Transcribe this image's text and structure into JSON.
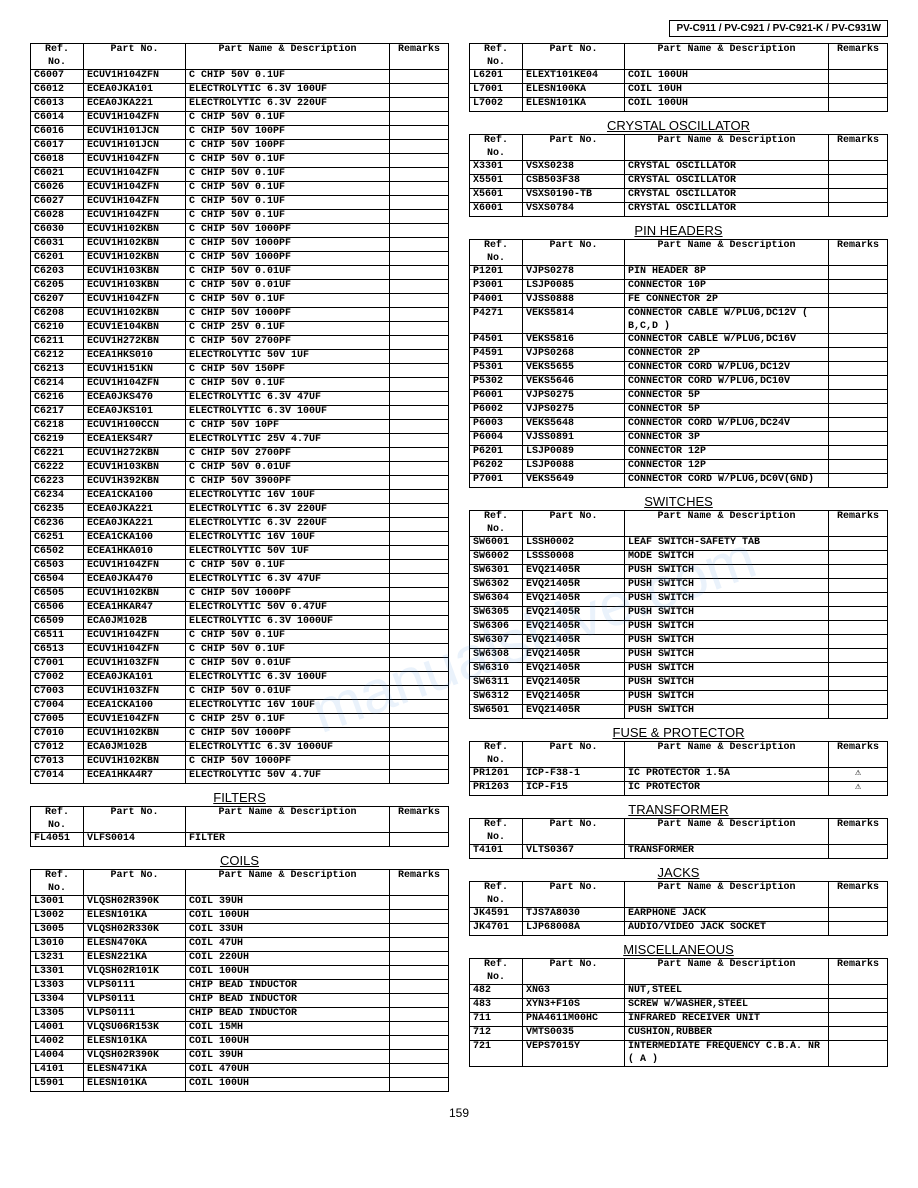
{
  "header_models": "PV-C911 / PV-C921 / PV-C921-K / PV-C931W",
  "page_number": "159",
  "watermark_text": "manualshive.com",
  "headers": {
    "ref": "Ref. No.",
    "part": "Part No.",
    "desc": "Part Name & Description",
    "remarks": "Remarks"
  },
  "sections": {
    "main_left": {
      "rows": [
        [
          "C6007",
          "ECUV1H104ZFN",
          "C CHIP 50V 0.1UF",
          ""
        ],
        [
          "C6012",
          "ECEA0JKA101",
          "ELECTROLYTIC 6.3V 100UF",
          ""
        ],
        [
          "C6013",
          "ECEA0JKA221",
          "ELECTROLYTIC 6.3V 220UF",
          ""
        ],
        [
          "C6014",
          "ECUV1H104ZFN",
          "C CHIP 50V 0.1UF",
          ""
        ],
        [
          "C6016",
          "ECUV1H101JCN",
          "C CHIP 50V 100PF",
          ""
        ],
        [
          "C6017",
          "ECUV1H101JCN",
          "C CHIP 50V 100PF",
          ""
        ],
        [
          "C6018",
          "ECUV1H104ZFN",
          "C CHIP 50V 0.1UF",
          ""
        ],
        [
          "C6021",
          "ECUV1H104ZFN",
          "C CHIP 50V 0.1UF",
          ""
        ],
        [
          "C6026",
          "ECUV1H104ZFN",
          "C CHIP 50V 0.1UF",
          ""
        ],
        [
          "C6027",
          "ECUV1H104ZFN",
          "C CHIP 50V 0.1UF",
          ""
        ],
        [
          "C6028",
          "ECUV1H104ZFN",
          "C CHIP 50V 0.1UF",
          ""
        ],
        [
          "C6030",
          "ECUV1H102KBN",
          "C CHIP 50V 1000PF",
          ""
        ],
        [
          "C6031",
          "ECUV1H102KBN",
          "C CHIP 50V 1000PF",
          ""
        ],
        [
          "C6201",
          "ECUV1H102KBN",
          "C CHIP 50V 1000PF",
          ""
        ],
        [
          "C6203",
          "ECUV1H103KBN",
          "C CHIP 50V 0.01UF",
          ""
        ],
        [
          "C6205",
          "ECUV1H103KBN",
          "C CHIP 50V 0.01UF",
          ""
        ],
        [
          "C6207",
          "ECUV1H104ZFN",
          "C CHIP 50V 0.1UF",
          ""
        ],
        [
          "C6208",
          "ECUV1H102KBN",
          "C CHIP 50V 1000PF",
          ""
        ],
        [
          "C6210",
          "ECUV1E104KBN",
          "C CHIP 25V 0.1UF",
          ""
        ],
        [
          "C6211",
          "ECUV1H272KBN",
          "C CHIP 50V 2700PF",
          ""
        ],
        [
          "C6212",
          "ECEA1HKS010",
          "ELECTROLYTIC 50V 1UF",
          ""
        ],
        [
          "C6213",
          "ECUV1H151KN",
          "C CHIP 50V 150PF",
          ""
        ],
        [
          "C6214",
          "ECUV1H104ZFN",
          "C CHIP 50V 0.1UF",
          ""
        ],
        [
          "C6216",
          "ECEA0JKS470",
          "ELECTROLYTIC 6.3V 47UF",
          ""
        ],
        [
          "C6217",
          "ECEA0JKS101",
          "ELECTROLYTIC 6.3V 100UF",
          ""
        ],
        [
          "C6218",
          "ECUV1H100CCN",
          "C CHIP 50V 10PF",
          ""
        ],
        [
          "C6219",
          "ECEA1EKS4R7",
          "ELECTROLYTIC 25V 4.7UF",
          ""
        ],
        [
          "C6221",
          "ECUV1H272KBN",
          "C CHIP 50V 2700PF",
          ""
        ],
        [
          "C6222",
          "ECUV1H103KBN",
          "C CHIP 50V 0.01UF",
          ""
        ],
        [
          "C6223",
          "ECUV1H392KBN",
          "C CHIP 50V 3900PF",
          ""
        ],
        [
          "C6234",
          "ECEA1CKA100",
          "ELECTROLYTIC 16V 10UF",
          ""
        ],
        [
          "C6235",
          "ECEA0JKA221",
          "ELECTROLYTIC 6.3V 220UF",
          ""
        ],
        [
          "C6236",
          "ECEA0JKA221",
          "ELECTROLYTIC 6.3V 220UF",
          ""
        ],
        [
          "C6251",
          "ECEA1CKA100",
          "ELECTROLYTIC 16V 10UF",
          ""
        ],
        [
          "C6502",
          "ECEA1HKA010",
          "ELECTROLYTIC 50V 1UF",
          ""
        ],
        [
          "C6503",
          "ECUV1H104ZFN",
          "C CHIP 50V 0.1UF",
          ""
        ],
        [
          "C6504",
          "ECEA0JKA470",
          "ELECTROLYTIC 6.3V 47UF",
          ""
        ],
        [
          "C6505",
          "ECUV1H102KBN",
          "C CHIP 50V 1000PF",
          ""
        ],
        [
          "C6506",
          "ECEA1HKAR47",
          "ELECTROLYTIC 50V 0.47UF",
          ""
        ],
        [
          "C6509",
          "ECA0JM102B",
          "ELECTROLYTIC 6.3V 1000UF",
          ""
        ],
        [
          "C6511",
          "ECUV1H104ZFN",
          "C CHIP 50V 0.1UF",
          ""
        ],
        [
          "C6513",
          "ECUV1H104ZFN",
          "C CHIP 50V 0.1UF",
          ""
        ],
        [
          "C7001",
          "ECUV1H103ZFN",
          "C CHIP 50V 0.01UF",
          ""
        ],
        [
          "C7002",
          "ECEA0JKA101",
          "ELECTROLYTIC 6.3V 100UF",
          ""
        ],
        [
          "C7003",
          "ECUV1H103ZFN",
          "C CHIP 50V 0.01UF",
          ""
        ],
        [
          "C7004",
          "ECEA1CKA100",
          "ELECTROLYTIC 16V 10UF",
          ""
        ],
        [
          "C7005",
          "ECUV1E104ZFN",
          "C CHIP 25V 0.1UF",
          ""
        ],
        [
          "C7010",
          "ECUV1H102KBN",
          "C CHIP 50V 1000PF",
          ""
        ],
        [
          "C7012",
          "ECA0JM102B",
          "ELECTROLYTIC 6.3V 1000UF",
          ""
        ],
        [
          "C7013",
          "ECUV1H102KBN",
          "C CHIP 50V 1000PF",
          ""
        ],
        [
          "C7014",
          "ECEA1HKA4R7",
          "ELECTROLYTIC 50V 4.7UF",
          ""
        ]
      ]
    },
    "filters": {
      "title": "FILTERS",
      "rows": [
        [
          "FL4051",
          "VLFS0014",
          "FILTER",
          ""
        ]
      ]
    },
    "coils_left": {
      "title": "COILS",
      "rows": [
        [
          "L3001",
          "VLQSH02R390K",
          "COIL 39UH",
          ""
        ],
        [
          "L3002",
          "ELESN101KA",
          "COIL 100UH",
          ""
        ],
        [
          "L3005",
          "VLQSH02R330K",
          "COIL 33UH",
          ""
        ],
        [
          "L3010",
          "ELESN470KA",
          "COIL 47UH",
          ""
        ],
        [
          "L3231",
          "ELESN221KA",
          "COIL 220UH",
          ""
        ],
        [
          "L3301",
          "VLQSH02R101K",
          "COIL 100UH",
          ""
        ],
        [
          "L3303",
          "VLPS0111",
          "CHIP BEAD INDUCTOR",
          ""
        ],
        [
          "L3304",
          "VLPS0111",
          "CHIP BEAD INDUCTOR",
          ""
        ],
        [
          "L3305",
          "VLPS0111",
          "CHIP BEAD INDUCTOR",
          ""
        ],
        [
          "L4001",
          "VLQSU06R153K",
          "COIL 15MH",
          ""
        ],
        [
          "L4002",
          "ELESN101KA",
          "COIL 100UH",
          ""
        ],
        [
          "L4004",
          "VLQSH02R390K",
          "COIL 39UH",
          ""
        ],
        [
          "L4101",
          "ELESN471KA",
          "COIL 470UH",
          ""
        ],
        [
          "L5901",
          "ELESN101KA",
          "COIL 100UH",
          ""
        ]
      ]
    },
    "coils_right": {
      "rows": [
        [
          "L6201",
          "ELEXT101KE04",
          "COIL 100UH",
          ""
        ],
        [
          "L7001",
          "ELESN100KA",
          "COIL 10UH",
          ""
        ],
        [
          "L7002",
          "ELESN101KA",
          "COIL 100UH",
          ""
        ]
      ]
    },
    "crystal": {
      "title": "CRYSTAL OSCILLATOR",
      "rows": [
        [
          "X3301",
          "VSXS0238",
          "CRYSTAL OSCILLATOR",
          ""
        ],
        [
          "X5501",
          "CSB503F38",
          "CRYSTAL OSCILLATOR",
          ""
        ],
        [
          "X5601",
          "VSXS0190-TB",
          "CRYSTAL OSCILLATOR",
          ""
        ],
        [
          "X6001",
          "VSXS0784",
          "CRYSTAL OSCILLATOR",
          ""
        ]
      ]
    },
    "pinheaders": {
      "title": "PIN HEADERS",
      "rows": [
        [
          "P1201",
          "VJPS0278",
          "PIN HEADER 8P",
          ""
        ],
        [
          "P3001",
          "LSJP0085",
          "CONNECTOR 10P",
          ""
        ],
        [
          "P4001",
          "VJSS0888",
          "FE CONNECTOR 2P",
          ""
        ],
        [
          "P4271",
          "VEKS5814",
          "CONNECTOR CABLE W/PLUG,DC12V ( B,C,D )",
          ""
        ],
        [
          "P4501",
          "VEKS5816",
          "CONNECTOR CABLE W/PLUG,DC16V",
          ""
        ],
        [
          "P4591",
          "VJPS0268",
          "CONNECTOR 2P",
          ""
        ],
        [
          "P5301",
          "VEKS5655",
          "CONNECTOR CORD W/PLUG,DC12V",
          ""
        ],
        [
          "P5302",
          "VEKS5646",
          "CONNECTOR CORD W/PLUG,DC10V",
          ""
        ],
        [
          "P6001",
          "VJPS0275",
          "CONNECTOR 5P",
          ""
        ],
        [
          "P6002",
          "VJPS0275",
          "CONNECTOR 5P",
          ""
        ],
        [
          "P6003",
          "VEKS5648",
          "CONNECTOR CORD W/PLUG,DC24V",
          ""
        ],
        [
          "P6004",
          "VJSS0891",
          "CONNECTOR 3P",
          ""
        ],
        [
          "P6201",
          "LSJP0089",
          "CONNECTOR 12P",
          ""
        ],
        [
          "P6202",
          "LSJP0088",
          "CONNECTOR 12P",
          ""
        ],
        [
          "P7001",
          "VEKS5649",
          "CONNECTOR CORD W/PLUG,DC0V(GND)",
          ""
        ]
      ]
    },
    "switches": {
      "title": "SWITCHES",
      "rows": [
        [
          "SW6001",
          "LSSH0002",
          "LEAF SWITCH-SAFETY TAB",
          ""
        ],
        [
          "SW6002",
          "LSSS0008",
          "MODE SWITCH",
          ""
        ],
        [
          "SW6301",
          "EVQ21405R",
          "PUSH SWITCH",
          ""
        ],
        [
          "SW6302",
          "EVQ21405R",
          "PUSH SWITCH",
          ""
        ],
        [
          "SW6304",
          "EVQ21405R",
          "PUSH SWITCH",
          ""
        ],
        [
          "SW6305",
          "EVQ21405R",
          "PUSH SWITCH",
          ""
        ],
        [
          "SW6306",
          "EVQ21405R",
          "PUSH SWITCH",
          ""
        ],
        [
          "SW6307",
          "EVQ21405R",
          "PUSH SWITCH",
          ""
        ],
        [
          "SW6308",
          "EVQ21405R",
          "PUSH SWITCH",
          ""
        ],
        [
          "SW6310",
          "EVQ21405R",
          "PUSH SWITCH",
          ""
        ],
        [
          "SW6311",
          "EVQ21405R",
          "PUSH SWITCH",
          ""
        ],
        [
          "SW6312",
          "EVQ21405R",
          "PUSH SWITCH",
          ""
        ],
        [
          "SW6501",
          "EVQ21405R",
          "PUSH SWITCH",
          ""
        ]
      ]
    },
    "fuse": {
      "title": "FUSE & PROTECTOR",
      "rows": [
        [
          "PR1201",
          "ICP-F38-1",
          "IC PROTECTOR 1.5A",
          "⚠"
        ],
        [
          "PR1203",
          "ICP-F15",
          "IC PROTECTOR",
          "⚠"
        ]
      ]
    },
    "transformer": {
      "title": "TRANSFORMER",
      "rows": [
        [
          "T4101",
          "VLTS0367",
          "TRANSFORMER",
          ""
        ]
      ]
    },
    "jacks": {
      "title": "JACKS",
      "rows": [
        [
          "JK4591",
          "TJS7A8030",
          "EARPHONE JACK",
          ""
        ],
        [
          "JK4701",
          "LJP68008A",
          "AUDIO/VIDEO JACK SOCKET",
          ""
        ]
      ]
    },
    "misc": {
      "title": "MISCELLANEOUS",
      "rows": [
        [
          "482",
          "XNG3",
          "NUT,STEEL",
          ""
        ],
        [
          "483",
          "XYN3+F10S",
          "SCREW W/WASHER,STEEL",
          ""
        ],
        [
          "711",
          "PNA4611M00HC",
          "INFRARED RECEIVER UNIT",
          ""
        ],
        [
          "712",
          "VMTS0035",
          "CUSHION,RUBBER",
          ""
        ],
        [
          "721",
          "VEPS7015Y",
          "INTERMEDIATE FREQUENCY C.B.A. NR ( A )",
          ""
        ]
      ]
    }
  }
}
